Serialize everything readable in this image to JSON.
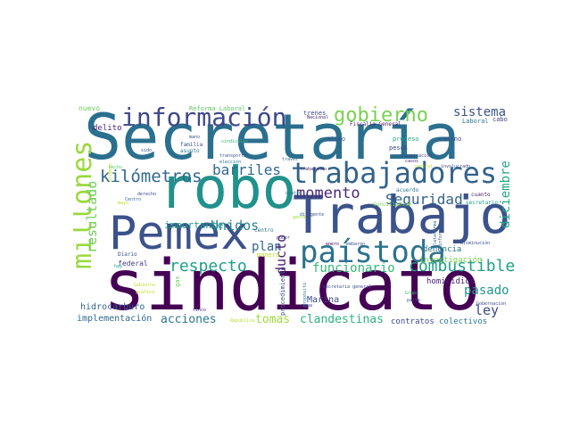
{
  "words": [
    {
      "text": "sindicato",
      "color": "#440154"
    },
    {
      "text": "Secretaría",
      "color": "#2a6f8e"
    },
    {
      "text": "robo",
      "color": "#21918c"
    },
    {
      "text": "Trabajo",
      "color": "#3b528b"
    },
    {
      "text": "Pemex",
      "color": "#3b528b"
    },
    {
      "text": "trabajadores",
      "color": "#33638d"
    },
    {
      "text": "paístoda",
      "color": "#2c728e"
    },
    {
      "text": "información",
      "color": "#3e4989"
    },
    {
      "text": "millones",
      "color": "#9ad93c"
    },
    {
      "text": "gobierno",
      "color": "#7ad151"
    },
    {
      "text": "kilómetros",
      "color": "#31688e"
    },
    {
      "text": "barriles",
      "color": "#31688e"
    },
    {
      "text": "respecto",
      "color": "#1f9e89"
    },
    {
      "text": "combustible",
      "color": "#1fa187"
    },
    {
      "text": "momento",
      "color": "#482878"
    },
    {
      "text": "Seguridad",
      "color": "#33638d"
    },
    {
      "text": "sistema",
      "color": "#3b528b"
    },
    {
      "text": "resultado",
      "color": "#6ece58"
    },
    {
      "text": "diciembre",
      "color": "#22a884"
    },
    {
      "text": "Unidos",
      "color": "#26828e"
    },
    {
      "text": "plan",
      "color": "#31688e"
    },
    {
      "text": "ducto",
      "color": "#481f70"
    },
    {
      "text": "funcionario",
      "color": "#35b779"
    },
    {
      "text": "pasado",
      "color": "#1f988b"
    },
    {
      "text": "ley",
      "color": "#3e4989"
    },
    {
      "text": "acciones",
      "color": "#2a788e"
    },
    {
      "text": "tomas",
      "color": "#a0da39"
    },
    {
      "text": "clandestinas",
      "color": "#2db27d"
    },
    {
      "text": "importante",
      "color": "#1f9a8a"
    },
    {
      "text": "implementación",
      "color": "#31688e"
    },
    {
      "text": "hidrocarburo",
      "color": "#33638d"
    },
    {
      "text": "federal",
      "color": "#433e85"
    },
    {
      "text": "Marina",
      "color": "#3e4989"
    },
    {
      "text": "denuncia",
      "color": "#2c728e"
    },
    {
      "text": "homicidios",
      "color": "#481f70"
    },
    {
      "text": "investigación",
      "color": "#7ad151"
    },
    {
      "text": "contratos",
      "color": "#3e4989"
    },
    {
      "text": "colectivos",
      "color": "#2a788e"
    },
    {
      "text": "democracia",
      "color": "#3b528b"
    },
    {
      "text": "delito",
      "color": "#481f70"
    },
    {
      "text": "nuevo",
      "color": "#6ece58"
    },
    {
      "text": "Reforma Laboral",
      "color": "#5ec962"
    },
    {
      "text": "trenes",
      "color": "#404688"
    },
    {
      "text": "Nacional",
      "color": "#481f70"
    },
    {
      "text": "Fiscalía General",
      "color": "#482475"
    },
    {
      "text": "Laboral",
      "color": "#2a788e"
    },
    {
      "text": "cabo",
      "color": "#414487"
    },
    {
      "text": "mismo",
      "color": "#3b528b"
    },
    {
      "text": "proceso",
      "color": "#22a884"
    },
    {
      "text": "casino",
      "color": "#3e4989"
    },
    {
      "text": "pesos",
      "color": "#404688"
    },
    {
      "text": "familia",
      "color": "#3b528b"
    },
    {
      "text": "asunto",
      "color": "#2a788e"
    },
    {
      "text": "Centro",
      "color": "#31688e"
    },
    {
      "text": "centro",
      "color": "#2c728e"
    },
    {
      "text": "cuanto",
      "color": "#481f70"
    },
    {
      "text": "secretario",
      "color": "#20a486"
    },
    {
      "text": "acuerdo",
      "color": "#2a788e"
    },
    {
      "text": "Conciliación",
      "color": "#75d054"
    },
    {
      "text": "control",
      "color": "#b5de2b"
    },
    {
      "text": "involucrado",
      "color": "#3b528b"
    },
    {
      "text": "casos",
      "color": "#482878"
    },
    {
      "text": "comunicación",
      "color": "#404688"
    },
    {
      "text": "mano",
      "color": "#3b528b"
    },
    {
      "text": "sido",
      "color": "#3e4989"
    },
    {
      "text": "sindicales",
      "color": "#35b779"
    },
    {
      "text": "transporte",
      "color": "#3b528b"
    },
    {
      "text": "elección",
      "color": "#2c728e"
    },
    {
      "text": "trabajando",
      "color": "#482878"
    },
    {
      "text": "través",
      "color": "#31688e"
    },
    {
      "text": "poder",
      "color": "#404688"
    },
    {
      "text": "cuatro",
      "color": "#2a788e"
    },
    {
      "text": "gente",
      "color": "#a0da39"
    },
    {
      "text": "dirigente",
      "color": "#3e4989"
    },
    {
      "text": "enero",
      "color": "#440154"
    },
    {
      "text": "embargo",
      "color": "#3b528b"
    },
    {
      "text": "plataforma",
      "color": "#31688e"
    },
    {
      "text": "informar",
      "color": "#3b528b"
    },
    {
      "text": "disminución",
      "color": "#3e4989"
    },
    {
      "text": "Gobernación",
      "color": "#3e4989"
    },
    {
      "text": "Grupo",
      "color": "#35b779"
    },
    {
      "text": "parte",
      "color": "#3b528b"
    },
    {
      "text": "propósito",
      "color": "#2a788e"
    },
    {
      "text": "agua",
      "color": "#3e4989"
    },
    {
      "text": "secretaria general",
      "color": "#3b528b"
    },
    {
      "text": "procedimiento",
      "color": "#3e4989"
    },
    {
      "text": "Diario",
      "color": "#3e4989"
    },
    {
      "text": "manera",
      "color": "#b5de2b"
    },
    {
      "text": "gas",
      "color": "#6ece58"
    },
    {
      "text": "cinco",
      "color": "#482878"
    },
    {
      "text": "República",
      "color": "#b5de2b"
    },
    {
      "text": "gráfica",
      "color": "#bddf26"
    },
    {
      "text": "primero",
      "color": "#bddf26"
    },
    {
      "text": "derecho",
      "color": "#3e4989"
    },
    {
      "text": "mayo",
      "color": "#bddf26"
    },
    {
      "text": "Gobierno",
      "color": "#bddf26"
    },
    {
      "text": "hecho",
      "color": "#5ec962"
    },
    {
      "text": "hay",
      "color": "#1f9a8a"
    }
  ]
}
